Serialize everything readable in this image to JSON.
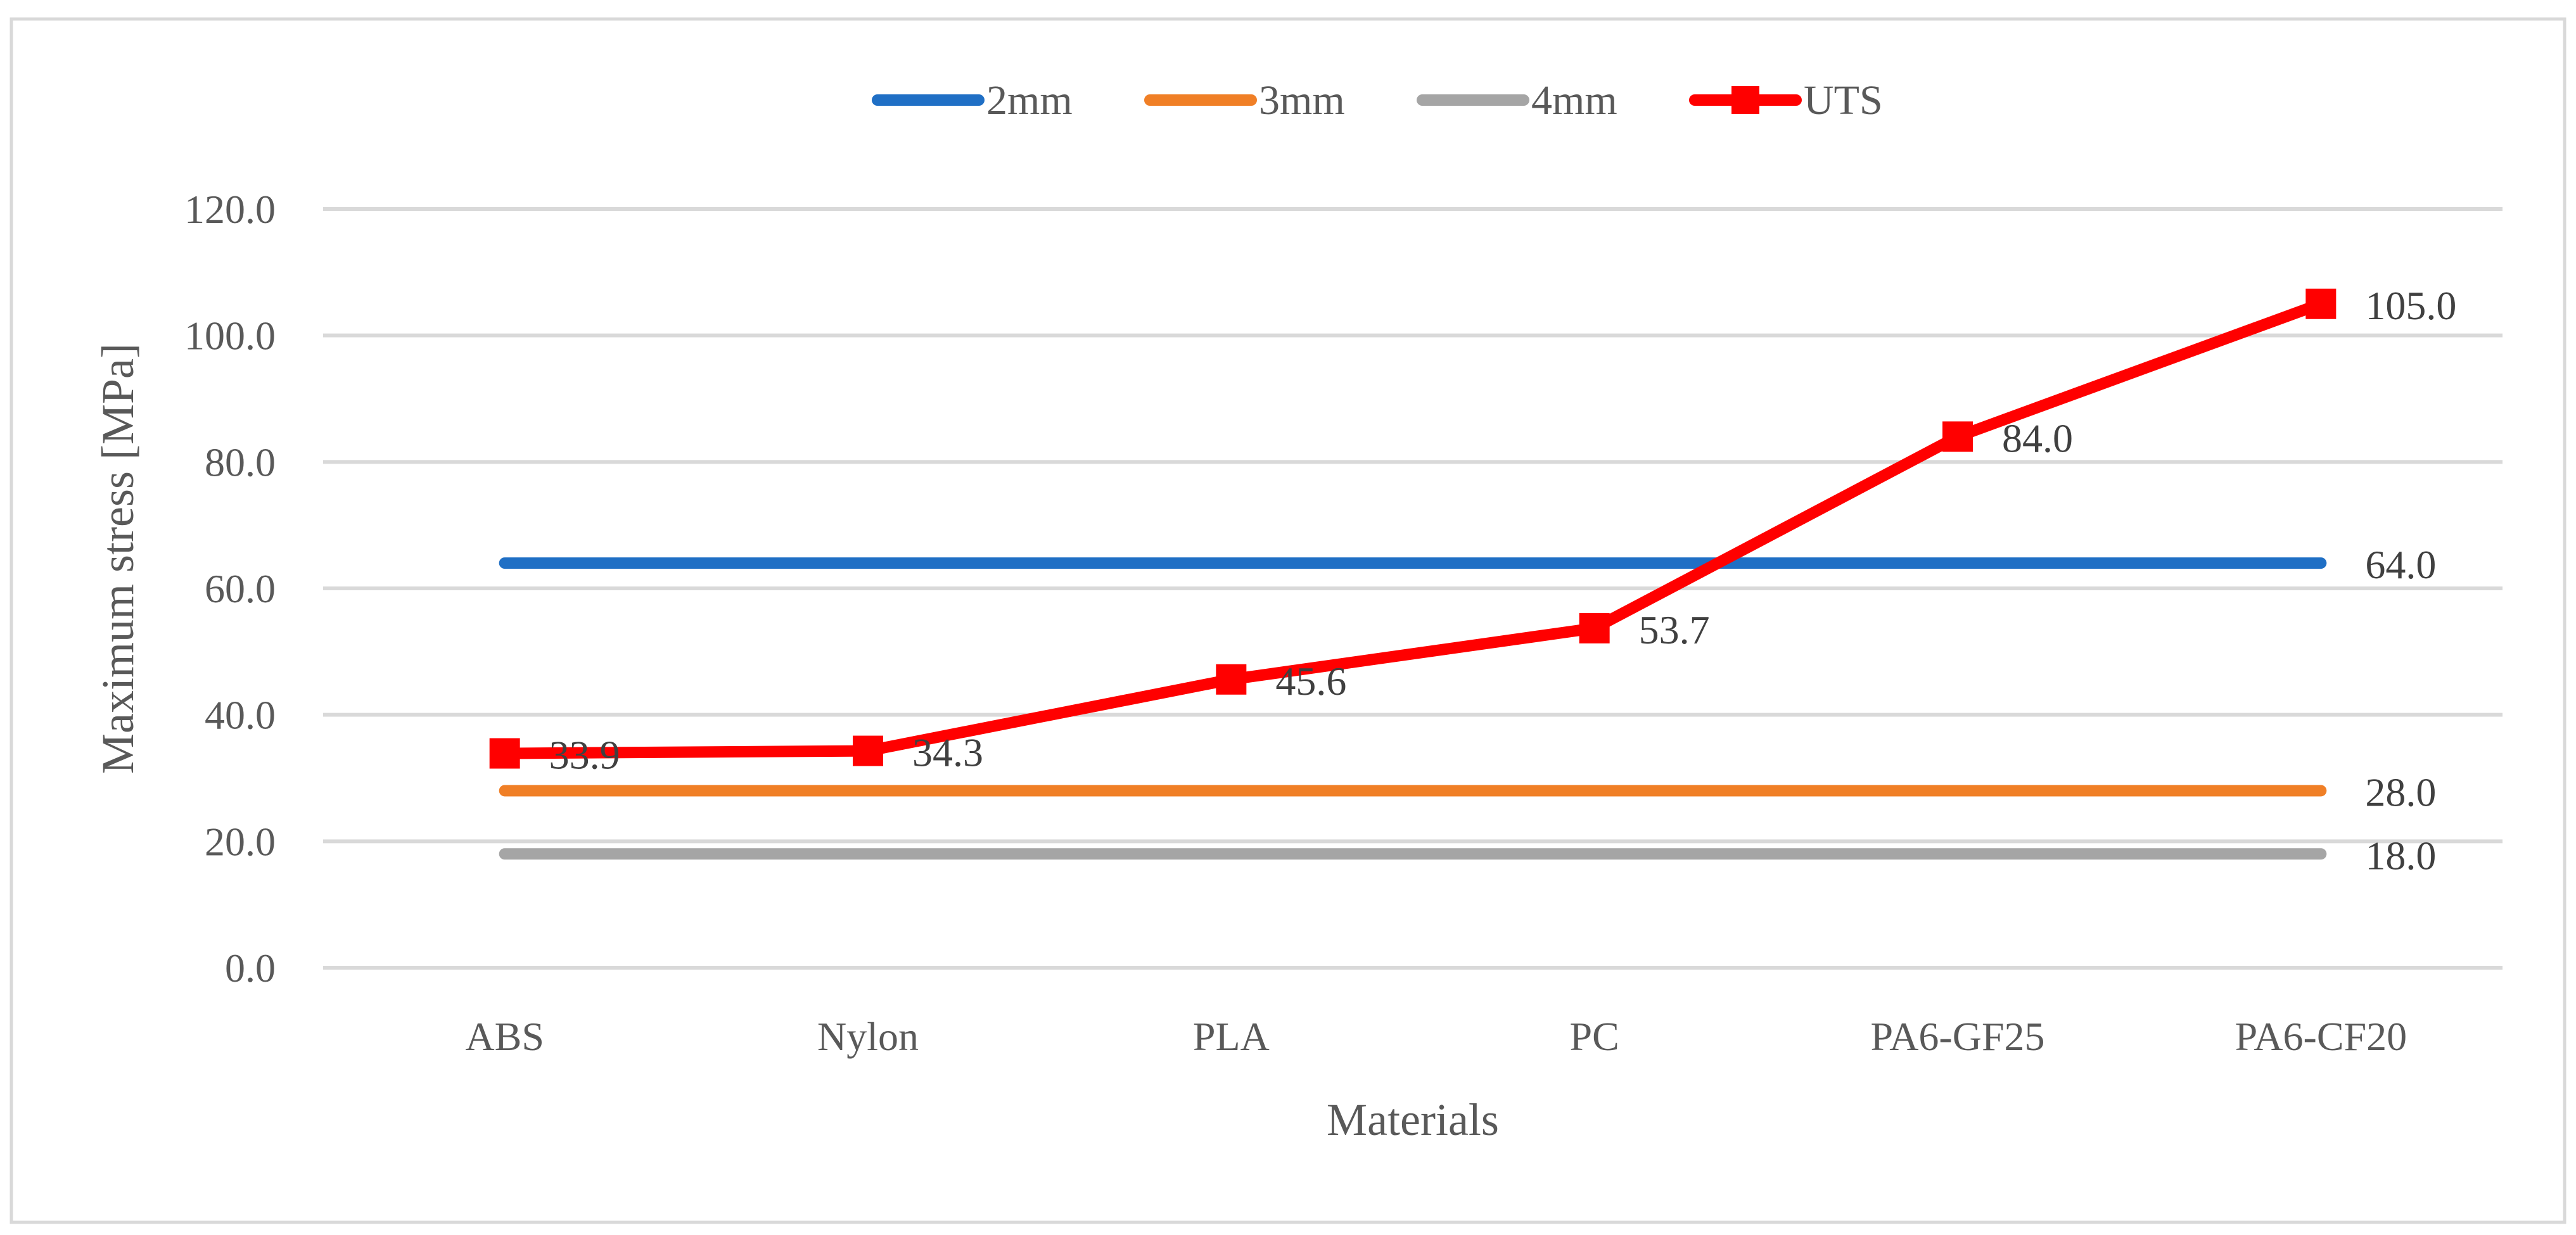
{
  "chart_data": {
    "type": "line",
    "categories": [
      "ABS",
      "Nylon",
      "PLA",
      "PC",
      "PA6-GF25",
      "PA6-CF20"
    ],
    "xlabel": "Materials",
    "ylabel": "Maximum stress [MPa]",
    "ylim": [
      0,
      120
    ],
    "yticks": [
      0,
      20,
      40,
      60,
      80,
      100,
      120
    ],
    "ytick_labels": [
      "0.0",
      "20.0",
      "40.0",
      "60.0",
      "80.0",
      "100.0",
      "120.0"
    ],
    "grid": true,
    "legend_position": "top",
    "series": [
      {
        "name": "2mm",
        "color": "#1f6fc5",
        "marker": "none",
        "values": [
          64.0,
          64.0,
          64.0,
          64.0,
          64.0,
          64.0
        ],
        "data_labels": [
          "",
          "",
          "",
          "",
          "",
          "64.0"
        ]
      },
      {
        "name": "3mm",
        "color": "#f07f26",
        "marker": "none",
        "values": [
          28.0,
          28.0,
          28.0,
          28.0,
          28.0,
          28.0
        ],
        "data_labels": [
          "",
          "",
          "",
          "",
          "",
          "28.0"
        ]
      },
      {
        "name": "4mm",
        "color": "#a5a5a5",
        "marker": "none",
        "values": [
          18.0,
          18.0,
          18.0,
          18.0,
          18.0,
          18.0
        ],
        "data_labels": [
          "",
          "",
          "",
          "",
          "",
          "18.0"
        ]
      },
      {
        "name": "UTS",
        "color": "#ff0000",
        "marker": "square",
        "values": [
          33.9,
          34.3,
          45.6,
          53.7,
          84.0,
          105.0
        ],
        "data_labels": [
          "33.9",
          "34.3",
          "45.6",
          "53.7",
          "84.0",
          "105.0"
        ]
      }
    ]
  }
}
